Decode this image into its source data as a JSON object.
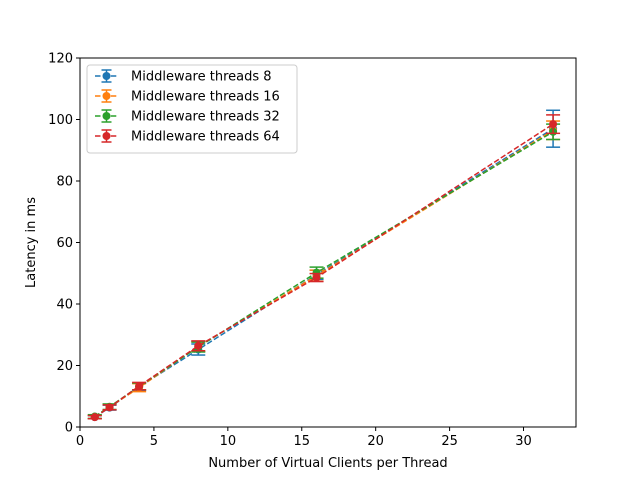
{
  "chart_data": {
    "type": "line",
    "xlabel": "Number of Virtual Clients per Thread",
    "ylabel": "Latency in ms",
    "xlim": [
      0,
      33.55
    ],
    "ylim": [
      0,
      120
    ],
    "x_ticks": [
      0,
      5,
      10,
      15,
      20,
      25,
      30
    ],
    "y_ticks": [
      0,
      20,
      40,
      60,
      80,
      100,
      120
    ],
    "grid": false,
    "legend_position": "top-left",
    "line_style": "dashed",
    "marker": "circle",
    "error_bars": true,
    "x": [
      1,
      2,
      4,
      8,
      16,
      32
    ],
    "series": [
      {
        "name": "Middleware threads 8",
        "color": "#1f77b4",
        "values": [
          3.2,
          6.3,
          13.1,
          25.2,
          49.5,
          97.0
        ],
        "errors": [
          0.5,
          0.8,
          1.2,
          1.8,
          1.5,
          6.0
        ]
      },
      {
        "name": "Middleware threads 16",
        "color": "#ff7f0e",
        "values": [
          3.3,
          6.5,
          12.8,
          26.2,
          49.2,
          96.5
        ],
        "errors": [
          0.6,
          0.9,
          1.3,
          1.7,
          1.8,
          3.0
        ]
      },
      {
        "name": "Middleware threads 32",
        "color": "#2ca02c",
        "values": [
          3.4,
          6.6,
          13.2,
          26.0,
          50.2,
          96.0
        ],
        "errors": [
          0.6,
          0.9,
          1.1,
          1.6,
          1.8,
          2.5
        ]
      },
      {
        "name": "Middleware threads 64",
        "color": "#d62728",
        "values": [
          3.2,
          6.4,
          13.3,
          26.4,
          48.6,
          98.5
        ],
        "errors": [
          0.5,
          0.8,
          1.2,
          1.6,
          1.3,
          3.0
        ]
      }
    ]
  }
}
